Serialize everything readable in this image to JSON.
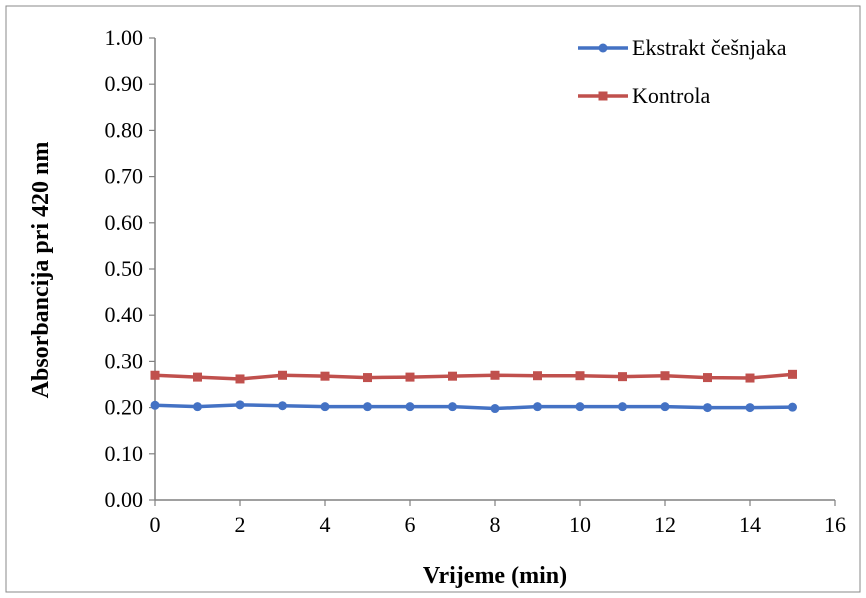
{
  "chart_data": {
    "type": "line",
    "title": "",
    "xlabel": "Vrijeme (min)",
    "ylabel": "Absorbancija pri 420 nm",
    "xlim": [
      0,
      16
    ],
    "ylim": [
      0,
      1
    ],
    "x_ticks": [
      "0",
      "2",
      "4",
      "6",
      "8",
      "10",
      "12",
      "14",
      "16"
    ],
    "y_ticks": [
      "0.00",
      "0.10",
      "0.20",
      "0.30",
      "0.40",
      "0.50",
      "0.60",
      "0.70",
      "0.80",
      "0.90",
      "1.00"
    ],
    "grid": false,
    "legend_position": "top-right",
    "x": [
      0,
      1,
      2,
      3,
      4,
      5,
      6,
      7,
      8,
      9,
      10,
      11,
      12,
      13,
      14,
      15
    ],
    "series": [
      {
        "name": "Ekstrakt češnjaka",
        "color": "#4472C4",
        "marker": "circle",
        "values": [
          0.205,
          0.202,
          0.206,
          0.204,
          0.202,
          0.202,
          0.202,
          0.202,
          0.198,
          0.202,
          0.202,
          0.202,
          0.202,
          0.2,
          0.2,
          0.201
        ]
      },
      {
        "name": "Kontrola",
        "color": "#C0504D",
        "marker": "square",
        "values": [
          0.27,
          0.266,
          0.262,
          0.27,
          0.268,
          0.265,
          0.266,
          0.268,
          0.27,
          0.269,
          0.269,
          0.267,
          0.269,
          0.265,
          0.264,
          0.272
        ]
      }
    ]
  }
}
